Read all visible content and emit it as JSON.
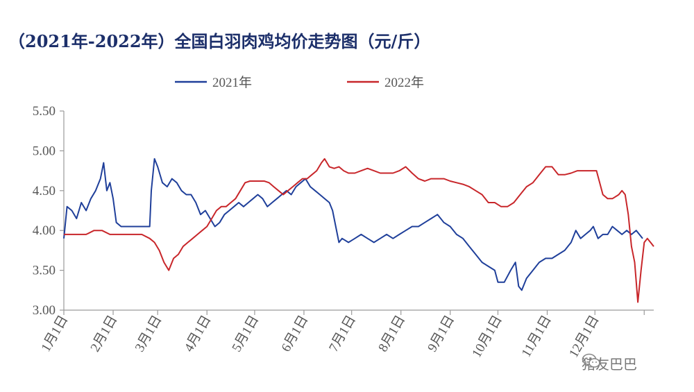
{
  "title": "（2021年-2022年）全国白羽肉鸡均价走势图（元/斤）",
  "watermark": "猪友巴巴",
  "chart_data": {
    "type": "line",
    "xlabel": "",
    "ylabel": "",
    "ylim": [
      3.0,
      5.5
    ],
    "yticks": [
      "3.00",
      "3.50",
      "4.00",
      "4.50",
      "5.00",
      "5.50"
    ],
    "xticks": [
      "1月1日",
      "2月1日",
      "3月1日",
      "4月1日",
      "5月1日",
      "6月1日",
      "7月1日",
      "8月1日",
      "9月1日",
      "10月1日",
      "11月1日",
      "12月1日"
    ],
    "legend": "top-center",
    "series": [
      {
        "name": "2021年",
        "color": "#1f3f9a",
        "points": [
          [
            1,
            3.9
          ],
          [
            3,
            4.3
          ],
          [
            6,
            4.25
          ],
          [
            9,
            4.15
          ],
          [
            12,
            4.35
          ],
          [
            15,
            4.25
          ],
          [
            18,
            4.4
          ],
          [
            21,
            4.5
          ],
          [
            24,
            4.65
          ],
          [
            26,
            4.85
          ],
          [
            28,
            4.5
          ],
          [
            30,
            4.6
          ],
          [
            32,
            4.4
          ],
          [
            34,
            4.1
          ],
          [
            37,
            4.05
          ],
          [
            40,
            4.05
          ],
          [
            45,
            4.05
          ],
          [
            50,
            4.05
          ],
          [
            55,
            4.05
          ],
          [
            56,
            4.5
          ],
          [
            57,
            4.7
          ],
          [
            58,
            4.9
          ],
          [
            60,
            4.8
          ],
          [
            63,
            4.6
          ],
          [
            66,
            4.55
          ],
          [
            69,
            4.65
          ],
          [
            72,
            4.6
          ],
          [
            75,
            4.5
          ],
          [
            78,
            4.45
          ],
          [
            81,
            4.45
          ],
          [
            84,
            4.35
          ],
          [
            87,
            4.2
          ],
          [
            90,
            4.25
          ],
          [
            93,
            4.15
          ],
          [
            96,
            4.05
          ],
          [
            99,
            4.1
          ],
          [
            102,
            4.2
          ],
          [
            105,
            4.25
          ],
          [
            108,
            4.3
          ],
          [
            111,
            4.35
          ],
          [
            114,
            4.3
          ],
          [
            117,
            4.35
          ],
          [
            120,
            4.4
          ],
          [
            123,
            4.45
          ],
          [
            126,
            4.4
          ],
          [
            129,
            4.3
          ],
          [
            132,
            4.35
          ],
          [
            135,
            4.4
          ],
          [
            138,
            4.45
          ],
          [
            141,
            4.5
          ],
          [
            144,
            4.45
          ],
          [
            147,
            4.55
          ],
          [
            150,
            4.6
          ],
          [
            153,
            4.65
          ],
          [
            156,
            4.55
          ],
          [
            159,
            4.5
          ],
          [
            162,
            4.45
          ],
          [
            165,
            4.4
          ],
          [
            168,
            4.35
          ],
          [
            170,
            4.25
          ],
          [
            172,
            4.05
          ],
          [
            174,
            3.85
          ],
          [
            176,
            3.9
          ],
          [
            180,
            3.85
          ],
          [
            184,
            3.9
          ],
          [
            188,
            3.95
          ],
          [
            192,
            3.9
          ],
          [
            196,
            3.85
          ],
          [
            200,
            3.9
          ],
          [
            204,
            3.95
          ],
          [
            208,
            3.9
          ],
          [
            212,
            3.95
          ],
          [
            216,
            4.0
          ],
          [
            220,
            4.05
          ],
          [
            224,
            4.05
          ],
          [
            228,
            4.1
          ],
          [
            232,
            4.15
          ],
          [
            236,
            4.2
          ],
          [
            240,
            4.1
          ],
          [
            244,
            4.05
          ],
          [
            248,
            3.95
          ],
          [
            252,
            3.9
          ],
          [
            256,
            3.8
          ],
          [
            260,
            3.7
          ],
          [
            264,
            3.6
          ],
          [
            268,
            3.55
          ],
          [
            272,
            3.5
          ],
          [
            274,
            3.35
          ],
          [
            278,
            3.35
          ],
          [
            282,
            3.5
          ],
          [
            285,
            3.6
          ],
          [
            287,
            3.3
          ],
          [
            289,
            3.25
          ],
          [
            292,
            3.4
          ],
          [
            296,
            3.5
          ],
          [
            300,
            3.6
          ],
          [
            304,
            3.65
          ],
          [
            308,
            3.65
          ],
          [
            312,
            3.7
          ],
          [
            316,
            3.75
          ],
          [
            320,
            3.85
          ],
          [
            323,
            4.0
          ],
          [
            326,
            3.9
          ],
          [
            329,
            3.95
          ],
          [
            332,
            4.0
          ],
          [
            334,
            4.05
          ],
          [
            337,
            3.9
          ],
          [
            340,
            3.95
          ],
          [
            343,
            3.95
          ],
          [
            346,
            4.05
          ],
          [
            349,
            4.0
          ],
          [
            352,
            3.95
          ],
          [
            355,
            4.0
          ],
          [
            358,
            3.95
          ],
          [
            361,
            4.0
          ],
          [
            365,
            3.9
          ]
        ]
      },
      {
        "name": "2022年",
        "color": "#c8262a",
        "points": [
          [
            1,
            3.95
          ],
          [
            5,
            3.95
          ],
          [
            10,
            3.95
          ],
          [
            15,
            3.95
          ],
          [
            20,
            4.0
          ],
          [
            25,
            4.0
          ],
          [
            30,
            3.95
          ],
          [
            35,
            3.95
          ],
          [
            40,
            3.95
          ],
          [
            45,
            3.95
          ],
          [
            50,
            3.95
          ],
          [
            55,
            3.9
          ],
          [
            58,
            3.85
          ],
          [
            61,
            3.75
          ],
          [
            64,
            3.6
          ],
          [
            67,
            3.5
          ],
          [
            70,
            3.65
          ],
          [
            73,
            3.7
          ],
          [
            76,
            3.8
          ],
          [
            79,
            3.85
          ],
          [
            82,
            3.9
          ],
          [
            85,
            3.95
          ],
          [
            88,
            4.0
          ],
          [
            91,
            4.05
          ],
          [
            94,
            4.15
          ],
          [
            97,
            4.25
          ],
          [
            100,
            4.3
          ],
          [
            103,
            4.3
          ],
          [
            106,
            4.35
          ],
          [
            109,
            4.4
          ],
          [
            112,
            4.5
          ],
          [
            115,
            4.6
          ],
          [
            118,
            4.62
          ],
          [
            121,
            4.62
          ],
          [
            124,
            4.62
          ],
          [
            127,
            4.62
          ],
          [
            130,
            4.6
          ],
          [
            133,
            4.55
          ],
          [
            136,
            4.5
          ],
          [
            139,
            4.45
          ],
          [
            142,
            4.5
          ],
          [
            145,
            4.55
          ],
          [
            148,
            4.6
          ],
          [
            151,
            4.65
          ],
          [
            154,
            4.65
          ],
          [
            157,
            4.7
          ],
          [
            160,
            4.75
          ],
          [
            163,
            4.85
          ],
          [
            165,
            4.9
          ],
          [
            168,
            4.8
          ],
          [
            171,
            4.78
          ],
          [
            174,
            4.8
          ],
          [
            177,
            4.75
          ],
          [
            180,
            4.72
          ],
          [
            184,
            4.72
          ],
          [
            188,
            4.75
          ],
          [
            192,
            4.78
          ],
          [
            196,
            4.75
          ],
          [
            200,
            4.72
          ],
          [
            204,
            4.72
          ],
          [
            208,
            4.72
          ],
          [
            212,
            4.75
          ],
          [
            216,
            4.8
          ],
          [
            220,
            4.72
          ],
          [
            224,
            4.65
          ],
          [
            228,
            4.62
          ],
          [
            232,
            4.65
          ],
          [
            236,
            4.65
          ],
          [
            240,
            4.65
          ],
          [
            244,
            4.62
          ],
          [
            248,
            4.6
          ],
          [
            252,
            4.58
          ],
          [
            256,
            4.55
          ],
          [
            260,
            4.5
          ],
          [
            264,
            4.45
          ],
          [
            268,
            4.35
          ],
          [
            272,
            4.35
          ],
          [
            276,
            4.3
          ],
          [
            280,
            4.3
          ],
          [
            284,
            4.35
          ],
          [
            288,
            4.45
          ],
          [
            292,
            4.55
          ],
          [
            296,
            4.6
          ],
          [
            300,
            4.7
          ],
          [
            304,
            4.8
          ],
          [
            308,
            4.8
          ],
          [
            312,
            4.7
          ],
          [
            316,
            4.7
          ],
          [
            320,
            4.72
          ],
          [
            324,
            4.75
          ],
          [
            328,
            4.75
          ],
          [
            332,
            4.75
          ],
          [
            336,
            4.75
          ],
          [
            338,
            4.6
          ],
          [
            340,
            4.45
          ],
          [
            343,
            4.4
          ],
          [
            346,
            4.4
          ],
          [
            350,
            4.45
          ],
          [
            352,
            4.5
          ],
          [
            354,
            4.45
          ],
          [
            356,
            4.2
          ],
          [
            358,
            3.8
          ],
          [
            360,
            3.6
          ],
          [
            362,
            3.1
          ],
          [
            364,
            3.5
          ],
          [
            366,
            3.85
          ],
          [
            368,
            3.9
          ],
          [
            370,
            3.85
          ],
          [
            372,
            3.8
          ]
        ]
      }
    ]
  }
}
